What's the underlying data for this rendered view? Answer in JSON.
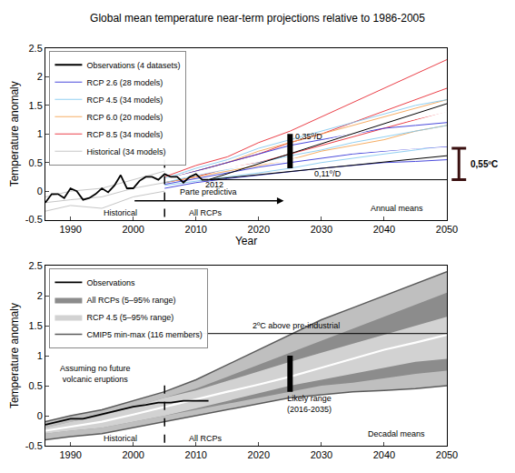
{
  "chart_data": [
    {
      "type": "line",
      "title": "Global mean temperature near-term projections relative to 1986-2005",
      "x_label": "Year",
      "y_label": "Temperature anomaly",
      "xlim": [
        1986,
        2050
      ],
      "xticks": [
        1990,
        2000,
        2010,
        2020,
        2030,
        2040,
        2050
      ],
      "ylim": [
        -0.5,
        2.5
      ],
      "yticks": [
        -0.5,
        0,
        0.5,
        1,
        1.5,
        2,
        2.5
      ],
      "grid": false,
      "legend": "top left",
      "series": [
        {
          "name": "Historical (34 models)",
          "color": "#bdbdbd",
          "x": [
            1986,
            1990,
            1995,
            2000,
            2005
          ],
          "values": [
            -0.1,
            0.0,
            0.05,
            0.2,
            0.35
          ]
        },
        {
          "name": "Historical (34 models)",
          "color": "#bdbdbd",
          "x": [
            1986,
            1990,
            1995,
            2000,
            2005
          ],
          "values": [
            -0.2,
            -0.15,
            -0.1,
            0.05,
            0.15
          ]
        },
        {
          "name": "Historical (34 models)",
          "color": "#bdbdbd",
          "x": [
            1986,
            1990,
            1995,
            2000,
            2005
          ],
          "values": [
            -0.35,
            -0.25,
            -0.3,
            -0.1,
            0.0
          ]
        },
        {
          "name": "RCP 8.5 (34 models)",
          "color": "#e8202a",
          "x": [
            2005,
            2010,
            2015,
            2020,
            2025,
            2030,
            2035,
            2040,
            2045,
            2050
          ],
          "values": [
            0.25,
            0.45,
            0.6,
            0.85,
            1.05,
            1.3,
            1.55,
            1.8,
            2.05,
            2.3
          ]
        },
        {
          "name": "RCP 8.5 (34 models)",
          "color": "#e8202a",
          "x": [
            2005,
            2010,
            2015,
            2020,
            2025,
            2030,
            2035,
            2040,
            2045,
            2050
          ],
          "values": [
            0.2,
            0.35,
            0.5,
            0.65,
            0.85,
            1.0,
            1.2,
            1.4,
            1.6,
            1.8
          ]
        },
        {
          "name": "RCP 8.5 (34 models)",
          "color": "#e8202a",
          "x": [
            2005,
            2010,
            2015,
            2020,
            2025,
            2030,
            2035,
            2040,
            2045,
            2050
          ],
          "values": [
            0.15,
            0.25,
            0.4,
            0.5,
            0.65,
            0.8,
            0.95,
            1.1,
            1.25,
            1.4
          ]
        },
        {
          "name": "RCP 6.0 (20 models)",
          "color": "#f5a04a",
          "x": [
            2005,
            2010,
            2015,
            2020,
            2025,
            2030,
            2035,
            2040,
            2045,
            2050
          ],
          "values": [
            0.2,
            0.35,
            0.5,
            0.7,
            0.85,
            1.0,
            1.15,
            1.3,
            1.45,
            1.6
          ]
        },
        {
          "name": "RCP 6.0 (20 models)",
          "color": "#f5a04a",
          "x": [
            2005,
            2010,
            2015,
            2020,
            2025,
            2030,
            2035,
            2040,
            2045,
            2050
          ],
          "values": [
            0.15,
            0.25,
            0.35,
            0.45,
            0.55,
            0.7,
            0.8,
            0.9,
            1.05,
            1.15
          ]
        },
        {
          "name": "RCP 4.5 (34 models)",
          "color": "#7fc8f0",
          "x": [
            2005,
            2010,
            2015,
            2020,
            2025,
            2030,
            2035,
            2040,
            2045,
            2050
          ],
          "values": [
            0.22,
            0.4,
            0.55,
            0.75,
            0.9,
            1.05,
            1.2,
            1.35,
            1.5,
            1.6
          ]
        },
        {
          "name": "RCP 4.5 (34 models)",
          "color": "#7fc8f0",
          "x": [
            2005,
            2010,
            2015,
            2020,
            2025,
            2030,
            2035,
            2040,
            2045,
            2050
          ],
          "values": [
            0.15,
            0.28,
            0.38,
            0.5,
            0.62,
            0.72,
            0.85,
            0.95,
            1.05,
            1.15
          ]
        },
        {
          "name": "RCP 4.5 (34 models)",
          "color": "#7fc8f0",
          "x": [
            2005,
            2010,
            2015,
            2020,
            2025,
            2030,
            2035,
            2040,
            2045,
            2050
          ],
          "values": [
            0.1,
            0.18,
            0.25,
            0.32,
            0.4,
            0.5,
            0.58,
            0.65,
            0.72,
            0.8
          ]
        },
        {
          "name": "RCP 2.6 (28 models)",
          "color": "#2b2bd6",
          "x": [
            2005,
            2010,
            2015,
            2020,
            2025,
            2030,
            2035,
            2040,
            2045,
            2050
          ],
          "values": [
            0.2,
            0.35,
            0.5,
            0.65,
            0.8,
            0.9,
            1.0,
            1.1,
            1.15,
            1.2
          ]
        },
        {
          "name": "RCP 2.6 (28 models)",
          "color": "#2b2bd6",
          "x": [
            2005,
            2010,
            2015,
            2020,
            2025,
            2030,
            2035,
            2040,
            2045,
            2050
          ],
          "values": [
            0.12,
            0.22,
            0.32,
            0.42,
            0.5,
            0.58,
            0.65,
            0.7,
            0.75,
            0.78
          ]
        },
        {
          "name": "RCP 2.6 (28 models)",
          "color": "#2b2bd6",
          "x": [
            2005,
            2010,
            2015,
            2020,
            2025,
            2030,
            2035,
            2040,
            2045,
            2050
          ],
          "values": [
            0.05,
            0.15,
            0.22,
            0.28,
            0.35,
            0.4,
            0.45,
            0.5,
            0.52,
            0.55
          ]
        },
        {
          "color": "#ffffff",
          "x": [
            2005,
            2010,
            2015,
            2020,
            2025,
            2030,
            2035,
            2040,
            2045,
            2050
          ],
          "values": [
            0.2,
            0.32,
            0.45,
            0.58,
            0.72,
            0.85,
            1.0,
            1.15,
            1.28,
            1.4
          ]
        },
        {
          "color": "#ffffff",
          "x": [
            2005,
            2010,
            2015,
            2020,
            2025,
            2030,
            2035,
            2040,
            2045,
            2050
          ],
          "values": [
            0.2,
            0.3,
            0.4,
            0.48,
            0.55,
            0.62,
            0.68,
            0.72,
            0.76,
            0.8
          ]
        },
        {
          "name": "Observations (4 datasets)",
          "color": "#000000",
          "x": [
            1986,
            1987,
            1988,
            1989,
            1990,
            1991,
            1992,
            1993,
            1994,
            1995,
            1996,
            1997,
            1998,
            1999,
            2000,
            2001,
            2002,
            2003,
            2004,
            2005,
            2006,
            2007,
            2008,
            2009,
            2010,
            2011,
            2012
          ],
          "values": [
            -0.2,
            -0.05,
            -0.05,
            -0.12,
            0.05,
            0.0,
            -0.15,
            -0.12,
            -0.05,
            0.05,
            -0.02,
            0.1,
            0.28,
            0.05,
            0.05,
            0.18,
            0.25,
            0.25,
            0.2,
            0.3,
            0.25,
            0.25,
            0.15,
            0.25,
            0.3,
            0.2,
            0.2
          ]
        },
        {
          "color": "#000000",
          "line_style": "solid",
          "x": [
            2012,
            2050
          ],
          "values": [
            0.2,
            1.53
          ]
        },
        {
          "color": "#000000",
          "line_style": "solid",
          "x": [
            2012,
            2050
          ],
          "values": [
            0.2,
            0.62
          ]
        },
        {
          "color": "#000000",
          "line_style": "solid",
          "x": [
            2012,
            2050
          ],
          "values": [
            0.2,
            0.2
          ]
        }
      ],
      "divider": {
        "x": 2005,
        "y": [
          -0.45,
          0.6
        ]
      },
      "likely_range": {
        "x": 2025,
        "y": [
          0.4,
          1.0
        ]
      },
      "bracket": {
        "y": [
          0.2,
          0.75
        ],
        "label": "0,55ºC"
      },
      "arrow": {
        "x": [
          2000,
          2024
        ],
        "y": -0.17
      },
      "annotations": [
        {
          "text": "0,35º/D",
          "x": 2028,
          "y": 0.95
        },
        {
          "text": "0,11º/D",
          "x": 2031,
          "y": 0.3
        },
        {
          "text": "2012",
          "x": 2013,
          "y": 0.12
        },
        {
          "text": "Parte predictiva",
          "x": 2012,
          "y": -0.02
        },
        {
          "text": "Historical",
          "x": 1998,
          "y": -0.38
        },
        {
          "text": "All RCPs",
          "x": 2011.5,
          "y": -0.38
        },
        {
          "text": "Annual means",
          "x": 2042,
          "y": -0.3
        }
      ]
    },
    {
      "type": "line",
      "y_label": "Temperature anomaly",
      "xlim": [
        1986,
        2050
      ],
      "xticks": [
        1990,
        2000,
        2010,
        2020,
        2030,
        2040,
        2050
      ],
      "ylim": [
        -0.5,
        2.5
      ],
      "yticks": [
        -0.5,
        0,
        0.5,
        1,
        1.5,
        2,
        2.5
      ],
      "grid": false,
      "legend": "top left",
      "series": [
        {
          "name": "CMIP5 min-max (116 members)",
          "type": "range",
          "color": "#5a5a5a",
          "x": [
            1986,
            1990,
            1995,
            2000,
            2005,
            2010,
            2015,
            2020,
            2025,
            2030,
            2035,
            2040,
            2045,
            2050
          ],
          "lower": [
            -0.4,
            -0.35,
            -0.3,
            -0.2,
            -0.1,
            0.0,
            0.1,
            0.2,
            0.3,
            0.35,
            0.4,
            0.42,
            0.45,
            0.5
          ],
          "upper": [
            -0.1,
            0.0,
            0.1,
            0.25,
            0.4,
            0.6,
            0.85,
            1.1,
            1.35,
            1.6,
            1.8,
            2.0,
            2.2,
            2.4
          ]
        },
        {
          "name": "RCP 4.5 (5–95% range)",
          "type": "band",
          "color": "#d2d2d2",
          "x": [
            1986,
            1990,
            1995,
            2000,
            2005,
            2010,
            2015,
            2020,
            2025,
            2030,
            2035,
            2040,
            2045,
            2050
          ],
          "lower": [
            -0.3,
            -0.25,
            -0.2,
            -0.1,
            0.0,
            0.12,
            0.25,
            0.38,
            0.5,
            0.6,
            0.7,
            0.8,
            0.9,
            0.95
          ],
          "upper": [
            -0.2,
            -0.1,
            0.0,
            0.15,
            0.3,
            0.42,
            0.58,
            0.75,
            0.9,
            1.05,
            1.2,
            1.35,
            1.5,
            1.65
          ]
        },
        {
          "name": "All RCPs (5–95% range)",
          "type": "band",
          "color": "#8c8c8c",
          "x": [
            1986,
            1990,
            1995,
            2000,
            2005,
            2010,
            2015,
            2020,
            2025,
            2030,
            2035,
            2040,
            2045,
            2050
          ],
          "lower": [
            -0.3,
            -0.25,
            -0.2,
            -0.1,
            0.0,
            0.1,
            0.2,
            0.3,
            0.4,
            0.5,
            0.55,
            0.62,
            0.7,
            0.75
          ],
          "upper": [
            -0.2,
            -0.1,
            0.0,
            0.15,
            0.3,
            0.45,
            0.65,
            0.85,
            1.05,
            1.25,
            1.45,
            1.65,
            1.85,
            2.05
          ]
        },
        {
          "color": "#ffffff",
          "x": [
            1986,
            1990,
            1995,
            2000,
            2005,
            2010,
            2015,
            2020,
            2025,
            2030,
            2035,
            2040,
            2045,
            2050
          ],
          "values": [
            -0.25,
            -0.18,
            -0.1,
            0.02,
            0.15,
            0.28,
            0.4,
            0.52,
            0.65,
            0.8,
            0.95,
            1.1,
            1.22,
            1.35
          ]
        },
        {
          "name": "Observations",
          "color": "#000000",
          "x": [
            1986,
            1988,
            1990,
            1992,
            1994,
            1996,
            1998,
            2000,
            2002,
            2004,
            2006,
            2008,
            2010,
            2012
          ],
          "values": [
            -0.15,
            -0.1,
            -0.05,
            -0.05,
            0.0,
            0.05,
            0.1,
            0.15,
            0.18,
            0.22,
            0.22,
            0.25,
            0.25,
            0.25
          ]
        }
      ],
      "divider": {
        "x": 2005,
        "y": [
          -0.45,
          0.6
        ]
      },
      "likely_range": {
        "x": 2025,
        "y": [
          0.4,
          1.0
        ]
      },
      "reference": {
        "x": [
          2007,
          2050
        ],
        "y": 1.37
      },
      "annotations": [
        {
          "text": "Assuming no future\nvolcanic eruptions",
          "x": 1994,
          "y": 0.7
        },
        {
          "text": "2ºC above pre-industrial",
          "x": 2026,
          "y": 1.5
        },
        {
          "text": "Likely range\n(2016-2035)",
          "x": 2028,
          "y": 0.2
        },
        {
          "text": "Historical",
          "x": 1998,
          "y": -0.38
        },
        {
          "text": "All RCPs",
          "x": 2011.5,
          "y": -0.38
        },
        {
          "text": "Decadal means",
          "x": 2042,
          "y": -0.3
        }
      ]
    }
  ]
}
